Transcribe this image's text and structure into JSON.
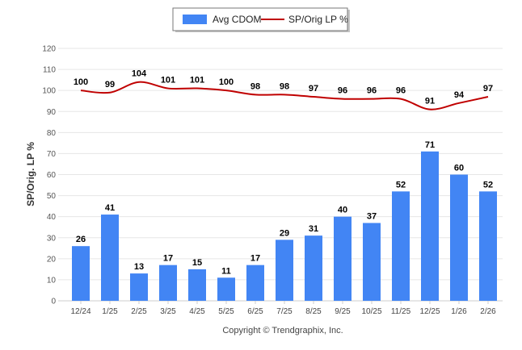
{
  "colors": {
    "bar": "#4285f4",
    "line": "#c00000",
    "grid": "#e6e6e6",
    "axis": "#cccccc"
  },
  "legend": {
    "bar_label": "Avg CDOM",
    "line_label": "SP/Orig LP %",
    "placement": "top-center"
  },
  "footer": "Copyright © Trendgraphix, Inc.",
  "chart_data": {
    "type": "bar",
    "combo_with": "line",
    "categories": [
      "12/24",
      "1/25",
      "2/25",
      "3/25",
      "4/25",
      "5/25",
      "6/25",
      "7/25",
      "8/25",
      "9/25",
      "10/25",
      "11/25",
      "12/25",
      "1/26",
      "2/26"
    ],
    "series": [
      {
        "name": "Avg CDOM",
        "type": "bar",
        "values": [
          26,
          41,
          13,
          17,
          15,
          11,
          17,
          29,
          31,
          40,
          37,
          52,
          71,
          60,
          52
        ]
      },
      {
        "name": "SP/Orig LP %",
        "type": "line",
        "values": [
          100,
          99,
          104,
          101,
          101,
          100,
          98,
          98,
          97,
          96,
          96,
          96,
          91,
          94,
          97
        ]
      }
    ],
    "ylabel": "SP/Orig. LP %",
    "xlabel": "",
    "ylim": [
      0,
      120
    ],
    "yticks": [
      0,
      10,
      20,
      30,
      40,
      50,
      60,
      70,
      80,
      90,
      100,
      110,
      120
    ],
    "grid": true,
    "data_labels": true
  }
}
